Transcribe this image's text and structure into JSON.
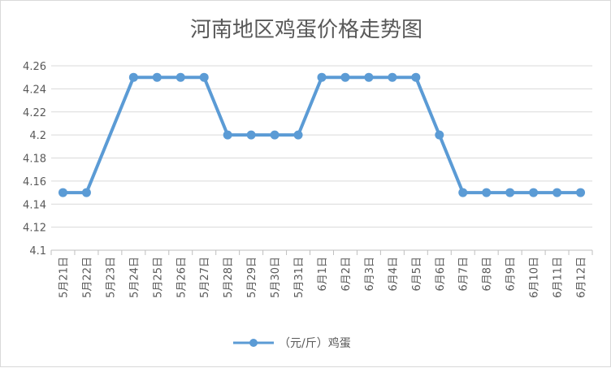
{
  "chart_data": {
    "type": "line",
    "title": "河南地区鸡蛋价格走势图",
    "xlabel": "",
    "ylabel": "",
    "ylim": [
      4.1,
      4.26
    ],
    "yticks": [
      "4.1",
      "4.12",
      "4.14",
      "4.16",
      "4.18",
      "4.2",
      "4.22",
      "4.24",
      "4.26"
    ],
    "categories": [
      "5月21日",
      "5月22日",
      "5月23日",
      "5月24日",
      "5月25日",
      "5月26日",
      "5月27日",
      "5月28日",
      "5月29日",
      "5月30日",
      "5月31日",
      "6月1日",
      "6月2日",
      "6月3日",
      "6月4日",
      "6月5日",
      "6月6日",
      "6月7日",
      "6月8日",
      "6月9日",
      "6月10日",
      "6月11日",
      "6月12日"
    ],
    "series": [
      {
        "name": "（元/斤）鸡蛋",
        "color": "#5b9bd5",
        "values": [
          4.15,
          4.15,
          null,
          4.25,
          4.25,
          4.25,
          4.25,
          4.2,
          4.2,
          4.2,
          4.2,
          4.25,
          4.25,
          4.25,
          4.25,
          4.25,
          4.2,
          4.15,
          4.15,
          4.15,
          4.15,
          4.15,
          4.15
        ]
      }
    ],
    "grid": true,
    "legend_position": "bottom"
  }
}
